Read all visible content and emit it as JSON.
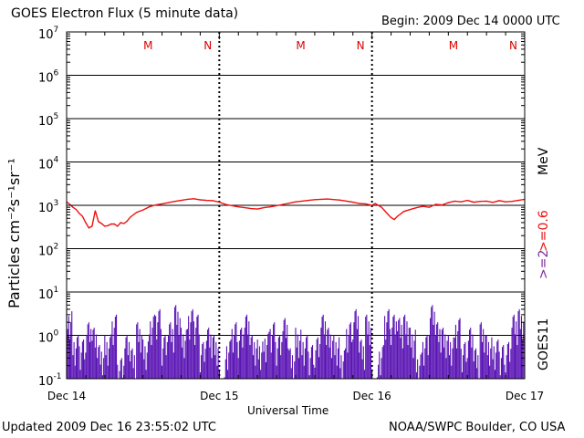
{
  "header": {
    "title": "GOES Electron Flux (5 minute data)",
    "begin": "Begin: 2009 Dec 14 0000 UTC"
  },
  "footer": {
    "updated": "Updated 2009 Dec 16 23:55:02 UTC",
    "credit": "NOAA/SWPC Boulder, CO USA"
  },
  "side_labels": {
    "satellite": "GOES11",
    "energy_high": ">=2",
    "energy_low": ">=0.6",
    "unit": "MeV"
  },
  "colors": {
    "series_06": "#ee1111",
    "series_2": "#5a14b4",
    "markers": "#dd0000",
    "energy_high": "#7a2aa0",
    "energy_low": "#ee1111"
  },
  "chart_data": {
    "type": "line",
    "title": "GOES Electron Flux (5 minute data)",
    "xlabel": "Universal Time",
    "ylabel": "Particles cm⁻²s⁻¹sr⁻¹",
    "y_scale": "log",
    "ylim": [
      0.1,
      10000000
    ],
    "xlim": [
      0,
      72
    ],
    "x_unit": "hours since 2009 Dec 14 0000 UTC",
    "x_tick_labels": [
      "Dec 14",
      "Dec 15",
      "Dec 16",
      "Dec 17"
    ],
    "x_ticks": [
      0,
      24,
      48,
      72
    ],
    "y_ticks": [
      {
        "base": "10",
        "exp": "-1",
        "value": 0.1
      },
      {
        "base": "10",
        "exp": "0",
        "value": 1
      },
      {
        "base": "10",
        "exp": "1",
        "value": 10
      },
      {
        "base": "10",
        "exp": "2",
        "value": 100
      },
      {
        "base": "10",
        "exp": "3",
        "value": 1000
      },
      {
        "base": "10",
        "exp": "4",
        "value": 10000
      },
      {
        "base": "10",
        "exp": "5",
        "value": 100000
      },
      {
        "base": "10",
        "exp": "6",
        "value": 1000000
      },
      {
        "base": "10",
        "exp": "7",
        "value": 10000000
      }
    ],
    "threshold": {
      "value": 1000,
      "style": "dashed"
    },
    "noon_midnight_markers": [
      {
        "label": "M",
        "x": 12.8
      },
      {
        "label": "N",
        "x": 22.2
      },
      {
        "label": "M",
        "x": 36.8
      },
      {
        "label": "N",
        "x": 46.2
      },
      {
        "label": "M",
        "x": 60.8
      },
      {
        "label": "N",
        "x": 70.2
      }
    ],
    "day_boundaries": [
      24,
      48
    ],
    "series": [
      {
        "name": ">=0.6 MeV",
        "color": "#ee1111",
        "x": [
          0,
          0.5,
          1,
          1.5,
          2,
          2.5,
          3,
          3.5,
          4,
          4.5,
          5,
          5.5,
          6,
          6.5,
          7,
          7.5,
          8,
          8.5,
          9,
          9.5,
          10,
          11,
          12,
          13,
          14,
          15,
          16,
          17,
          18,
          19,
          20,
          21,
          22,
          23,
          24,
          25,
          26,
          27,
          28,
          29,
          30,
          31,
          32,
          33,
          34,
          35,
          36,
          37,
          38,
          39,
          40,
          41,
          42,
          43,
          44,
          45,
          46,
          47,
          48,
          48.5,
          49,
          49.5,
          50,
          50.5,
          51,
          51.5,
          52,
          53,
          54,
          55,
          56,
          57,
          58,
          59,
          60,
          61,
          62,
          63,
          64,
          65,
          66,
          67,
          68,
          69,
          70,
          71,
          72
        ],
        "values": [
          1200,
          1050,
          900,
          800,
          650,
          560,
          400,
          300,
          330,
          750,
          420,
          380,
          330,
          340,
          370,
          370,
          330,
          400,
          380,
          430,
          530,
          690,
          780,
          920,
          1020,
          1080,
          1150,
          1230,
          1300,
          1380,
          1420,
          1340,
          1300,
          1280,
          1180,
          1050,
          980,
          920,
          880,
          840,
          820,
          880,
          920,
          980,
          1050,
          1120,
          1200,
          1250,
          1300,
          1350,
          1380,
          1400,
          1360,
          1320,
          1250,
          1180,
          1100,
          1080,
          1000,
          1100,
          1000,
          900,
          750,
          620,
          520,
          470,
          560,
          720,
          800,
          880,
          950,
          900,
          1050,
          1020,
          1150,
          1250,
          1200,
          1300,
          1180,
          1230,
          1250,
          1170,
          1280,
          1200,
          1230,
          1300,
          1380
        ]
      },
      {
        "name": ">=2 MeV",
        "color": "#5a14b4",
        "style": "spiky-fill",
        "x": [
          0,
          1,
          2,
          3,
          4,
          5,
          6,
          7,
          8,
          9,
          10,
          11,
          12,
          13,
          14,
          15,
          16,
          17,
          18,
          19,
          20,
          21,
          22,
          23,
          24,
          25,
          26,
          27,
          28,
          29,
          30,
          31,
          32,
          33,
          34,
          35,
          36,
          37,
          38,
          39,
          40,
          41,
          42,
          43,
          44,
          45,
          46,
          47,
          48,
          49,
          50,
          51,
          52,
          53,
          54,
          55,
          56,
          57,
          58,
          59,
          60,
          61,
          62,
          63,
          64,
          65,
          66,
          67,
          68,
          69,
          70,
          71,
          72
        ],
        "values": [
          4,
          1,
          0.8,
          2,
          1.5,
          0.6,
          1,
          3,
          0.3,
          1,
          0.5,
          2,
          0.8,
          3,
          4,
          1,
          2,
          5,
          1.5,
          4,
          3,
          0.7,
          1.5,
          1,
          0.12,
          0.8,
          2,
          1.5,
          3,
          1,
          0.8,
          1.2,
          2,
          1,
          2.5,
          0.5,
          1.5,
          1,
          0.6,
          0.9,
          3,
          1.5,
          1,
          0.5,
          2,
          4,
          0.8,
          3,
          0.12,
          0.6,
          4,
          3,
          2.5,
          3,
          1.5,
          0.4,
          1,
          5,
          2,
          1.5,
          1,
          2.5,
          0.7,
          1.5,
          0.5,
          2,
          1,
          0.8,
          0.6,
          0.7,
          3,
          4,
          2
        ]
      }
    ]
  }
}
